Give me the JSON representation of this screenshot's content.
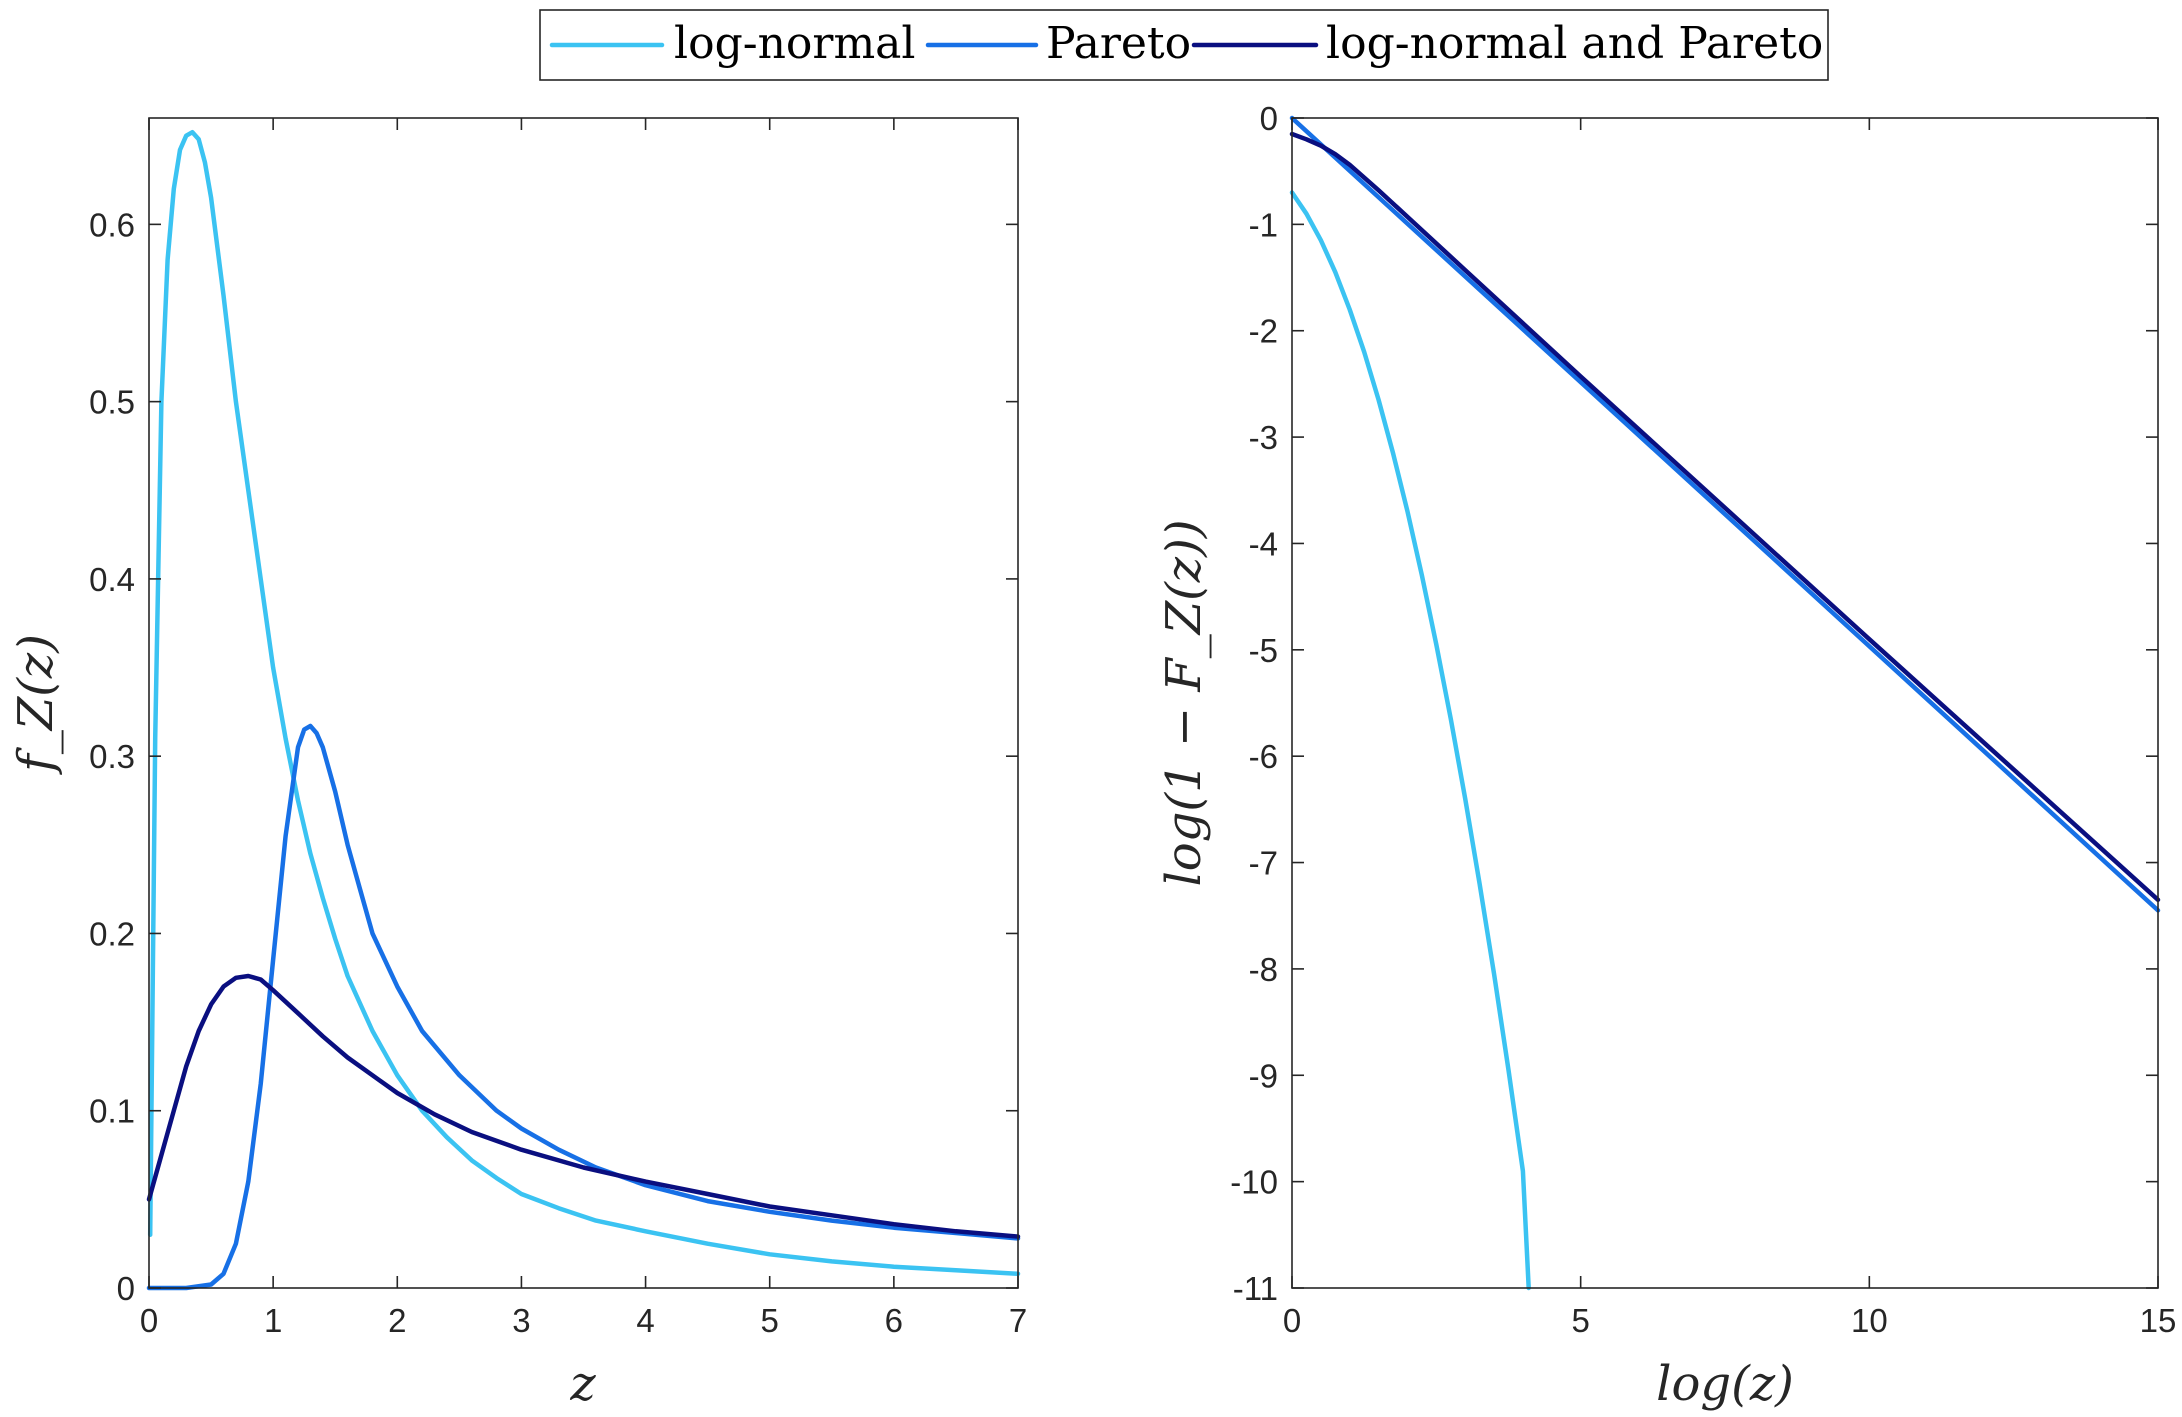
{
  "legend": {
    "entries": [
      {
        "label": "log-normal",
        "color": "#3bc3f2"
      },
      {
        "label": "Pareto",
        "color": "#1770e6"
      },
      {
        "label": "log-normal and Pareto",
        "color": "#0a0f80"
      }
    ]
  },
  "chart_data": [
    {
      "type": "line",
      "title": "",
      "xlabel": "z",
      "ylabel": "f_Z(z)",
      "xlim": [
        0,
        7
      ],
      "ylim": [
        0,
        0.66
      ],
      "xticks": [
        0,
        1,
        2,
        3,
        4,
        5,
        6,
        7
      ],
      "yticks": [
        0,
        0.1,
        0.2,
        0.3,
        0.4,
        0.5,
        0.6
      ],
      "xtick_labels": [
        "0",
        "1",
        "2",
        "3",
        "4",
        "5",
        "6",
        "7"
      ],
      "ytick_labels": [
        "0",
        "0.1",
        "0.2",
        "0.3",
        "0.4",
        "0.5",
        "0.6"
      ],
      "grid": false,
      "series": [
        {
          "name": "log-normal",
          "color": "#3bc3f2",
          "x": [
            0.01,
            0.05,
            0.1,
            0.15,
            0.2,
            0.25,
            0.3,
            0.35,
            0.4,
            0.45,
            0.5,
            0.6,
            0.7,
            0.8,
            0.9,
            1.0,
            1.1,
            1.2,
            1.3,
            1.4,
            1.5,
            1.6,
            1.8,
            2.0,
            2.2,
            2.4,
            2.6,
            2.8,
            3.0,
            3.3,
            3.6,
            4.0,
            4.5,
            5.0,
            5.5,
            6.0,
            6.5,
            7.0
          ],
          "y": [
            0.03,
            0.31,
            0.5,
            0.58,
            0.62,
            0.642,
            0.65,
            0.652,
            0.648,
            0.635,
            0.615,
            0.56,
            0.5,
            0.45,
            0.4,
            0.35,
            0.31,
            0.275,
            0.245,
            0.22,
            0.197,
            0.176,
            0.145,
            0.12,
            0.1,
            0.085,
            0.072,
            0.062,
            0.053,
            0.045,
            0.038,
            0.032,
            0.025,
            0.019,
            0.015,
            0.012,
            0.01,
            0.008
          ]
        },
        {
          "name": "Pareto",
          "color": "#1770e6",
          "x": [
            0,
            0.3,
            0.5,
            0.6,
            0.7,
            0.8,
            0.9,
            1.0,
            1.1,
            1.2,
            1.25,
            1.3,
            1.35,
            1.4,
            1.5,
            1.6,
            1.7,
            1.8,
            2.0,
            2.2,
            2.5,
            2.8,
            3.0,
            3.3,
            3.6,
            4.0,
            4.5,
            5.0,
            5.5,
            6.0,
            6.5,
            7.0
          ],
          "y": [
            0,
            0,
            0.002,
            0.008,
            0.025,
            0.06,
            0.115,
            0.185,
            0.255,
            0.305,
            0.315,
            0.317,
            0.313,
            0.305,
            0.28,
            0.25,
            0.225,
            0.2,
            0.17,
            0.145,
            0.12,
            0.1,
            0.09,
            0.078,
            0.068,
            0.058,
            0.049,
            0.043,
            0.038,
            0.034,
            0.031,
            0.028
          ]
        },
        {
          "name": "log-normal and Pareto",
          "color": "#0a0f80",
          "x": [
            0,
            0.1,
            0.2,
            0.3,
            0.4,
            0.5,
            0.6,
            0.7,
            0.8,
            0.9,
            1.0,
            1.2,
            1.4,
            1.6,
            1.8,
            2.0,
            2.3,
            2.6,
            3.0,
            3.5,
            4.0,
            4.5,
            5.0,
            5.5,
            6.0,
            6.5,
            7.0
          ],
          "y": [
            0.05,
            0.075,
            0.1,
            0.125,
            0.145,
            0.16,
            0.17,
            0.175,
            0.176,
            0.174,
            0.168,
            0.155,
            0.142,
            0.13,
            0.12,
            0.11,
            0.098,
            0.088,
            0.078,
            0.068,
            0.06,
            0.053,
            0.046,
            0.041,
            0.036,
            0.032,
            0.029
          ]
        }
      ]
    },
    {
      "type": "line",
      "title": "",
      "xlabel": "log(z)",
      "ylabel": "log(1 − F_Z(z))",
      "xlim": [
        0,
        15
      ],
      "ylim": [
        -11,
        0
      ],
      "xticks": [
        0,
        5,
        10,
        15
      ],
      "yticks": [
        0,
        -1,
        -2,
        -3,
        -4,
        -5,
        -6,
        -7,
        -8,
        -9,
        -10,
        -11
      ],
      "xtick_labels": [
        "0",
        "5",
        "10",
        "15"
      ],
      "ytick_labels": [
        "0",
        "-1",
        "-2",
        "-3",
        "-4",
        "-5",
        "-6",
        "-7",
        "-8",
        "-9",
        "-10",
        "-11"
      ],
      "grid": false,
      "series": [
        {
          "name": "log-normal",
          "color": "#3bc3f2",
          "x": [
            0,
            0.25,
            0.5,
            0.75,
            1.0,
            1.25,
            1.5,
            1.75,
            2.0,
            2.25,
            2.5,
            2.75,
            3.0,
            3.25,
            3.5,
            3.75,
            4.0,
            4.1
          ],
          "y": [
            -0.7,
            -0.9,
            -1.15,
            -1.45,
            -1.8,
            -2.2,
            -2.65,
            -3.15,
            -3.7,
            -4.3,
            -4.95,
            -5.65,
            -6.4,
            -7.2,
            -8.05,
            -8.95,
            -9.9,
            -11.0
          ]
        },
        {
          "name": "Pareto",
          "color": "#1770e6",
          "x": [
            0,
            15
          ],
          "y": [
            0,
            -7.45
          ]
        },
        {
          "name": "log-normal and Pareto",
          "color": "#0a0f80",
          "x": [
            0,
            0.25,
            0.5,
            0.75,
            1.0,
            1.5,
            2.0,
            3.0,
            5.0,
            10.0,
            15.0
          ],
          "y": [
            -0.15,
            -0.2,
            -0.26,
            -0.34,
            -0.44,
            -0.68,
            -0.93,
            -1.43,
            -2.43,
            -4.9,
            -7.35
          ]
        }
      ]
    }
  ]
}
